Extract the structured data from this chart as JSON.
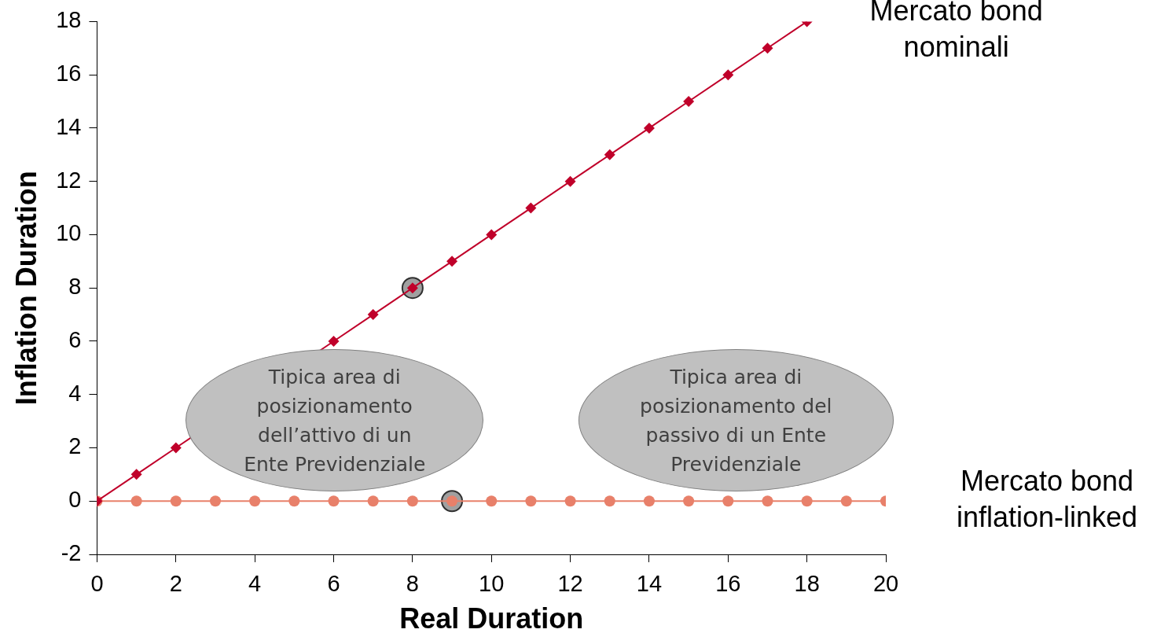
{
  "chart_data": {
    "type": "line",
    "xlabel": "Real Duration",
    "ylabel": "Inflation Duration",
    "xlim": [
      0,
      20
    ],
    "xticks": [
      0,
      2,
      4,
      6,
      8,
      10,
      12,
      14,
      16,
      18,
      20
    ],
    "ylim": [
      -2,
      18
    ],
    "yticks": [
      -2,
      0,
      2,
      4,
      6,
      8,
      10,
      12,
      14,
      16,
      18
    ],
    "grid": false,
    "legend": false,
    "series": [
      {
        "name": "Mercato bond nominali",
        "color": "#c0002a",
        "marker": "diamond",
        "x": [
          0,
          1,
          2,
          3,
          4,
          5,
          6,
          7,
          8,
          9,
          10,
          11,
          12,
          13,
          14,
          15,
          16,
          17,
          18
        ],
        "values": [
          0,
          1,
          2,
          null,
          null,
          null,
          6,
          7,
          8,
          9,
          10,
          11,
          12,
          13,
          14,
          15,
          16,
          17,
          18
        ]
      },
      {
        "name": "Mercato bond inflation-linked",
        "color": "#e8806a",
        "marker": "circle",
        "x": [
          0,
          1,
          2,
          3,
          4,
          5,
          6,
          7,
          8,
          9,
          10,
          11,
          12,
          13,
          14,
          15,
          16,
          17,
          18,
          19,
          20
        ],
        "values": [
          0,
          0,
          0,
          0,
          0,
          0,
          0,
          0,
          0,
          0,
          0,
          0,
          0,
          0,
          0,
          0,
          0,
          0,
          0,
          0,
          0
        ]
      },
      {
        "type": "scatter",
        "color": "#a0a0a0",
        "marker": "circle",
        "x": [
          8,
          9
        ],
        "values": [
          8,
          0
        ]
      }
    ],
    "annotations": [
      "Tipica area di posizionamento dell’attivo di un Ente Previdenziale",
      "Tipica area di posizionamento del passivo di un Ente Previdenziale"
    ]
  }
}
